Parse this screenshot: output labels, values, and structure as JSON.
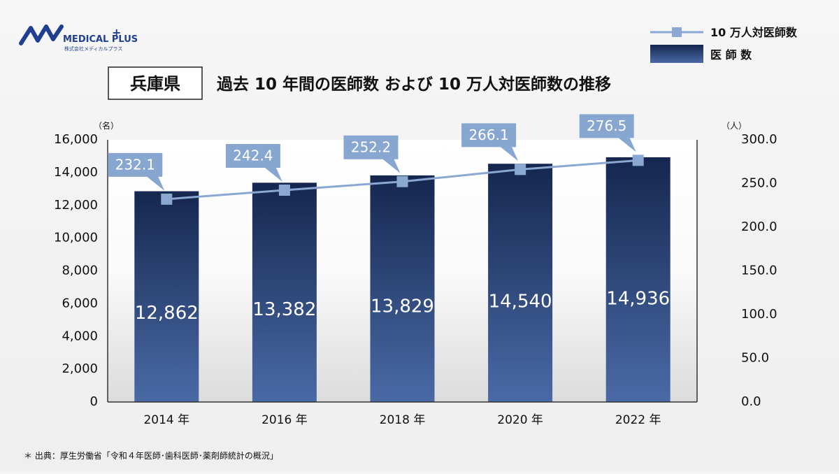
{
  "brand": {
    "name": "MEDICAL PLUS",
    "plus": "+",
    "subtitle": "株式会社メディカルプラス"
  },
  "prefecture": "兵庫県",
  "title": "過去 10 年間の医師数 および 10 万人対医師数の推移",
  "footnote": "＊ 出典：厚生労働省「令和４年医師･歯科医師･薬剤師統計の概況」",
  "colors": {
    "bar_top": "#15274f",
    "bar_bottom": "#4a6aa6",
    "line": "#8ba8d2",
    "marker": "#8ba8d2",
    "label_bg": "#87a6d0",
    "text": "#111111"
  },
  "chart_data": {
    "type": "bar+line",
    "categories": [
      "2014 年",
      "2016 年",
      "2018 年",
      "2020 年",
      "2022 年"
    ],
    "series": [
      {
        "name": "医 師 数",
        "type": "bar",
        "axis": "left",
        "values": [
          12862,
          13382,
          13829,
          14540,
          14936
        ],
        "labels": [
          "12,862",
          "13,382",
          "13,829",
          "14,540",
          "14,936"
        ]
      },
      {
        "name": "10 万人対医師数",
        "type": "line",
        "axis": "right",
        "values": [
          232.1,
          242.4,
          252.2,
          266.1,
          276.5
        ],
        "labels": [
          "232.1",
          "242.4",
          "252.2",
          "266.1",
          "276.5"
        ]
      }
    ],
    "y_left": {
      "unit": "（名）",
      "range": [
        0,
        16000
      ],
      "ticks": [
        "0",
        "2,000",
        "4,000",
        "6,000",
        "8,000",
        "10,000",
        "12,000",
        "14,000",
        "16,000"
      ]
    },
    "y_right": {
      "unit": "（人）",
      "range": [
        0,
        300
      ],
      "ticks": [
        "0.0",
        "50.0",
        "100.0",
        "150.0",
        "200.0",
        "250.0",
        "300.0"
      ]
    },
    "legend_position": "top-right",
    "grid": false
  }
}
